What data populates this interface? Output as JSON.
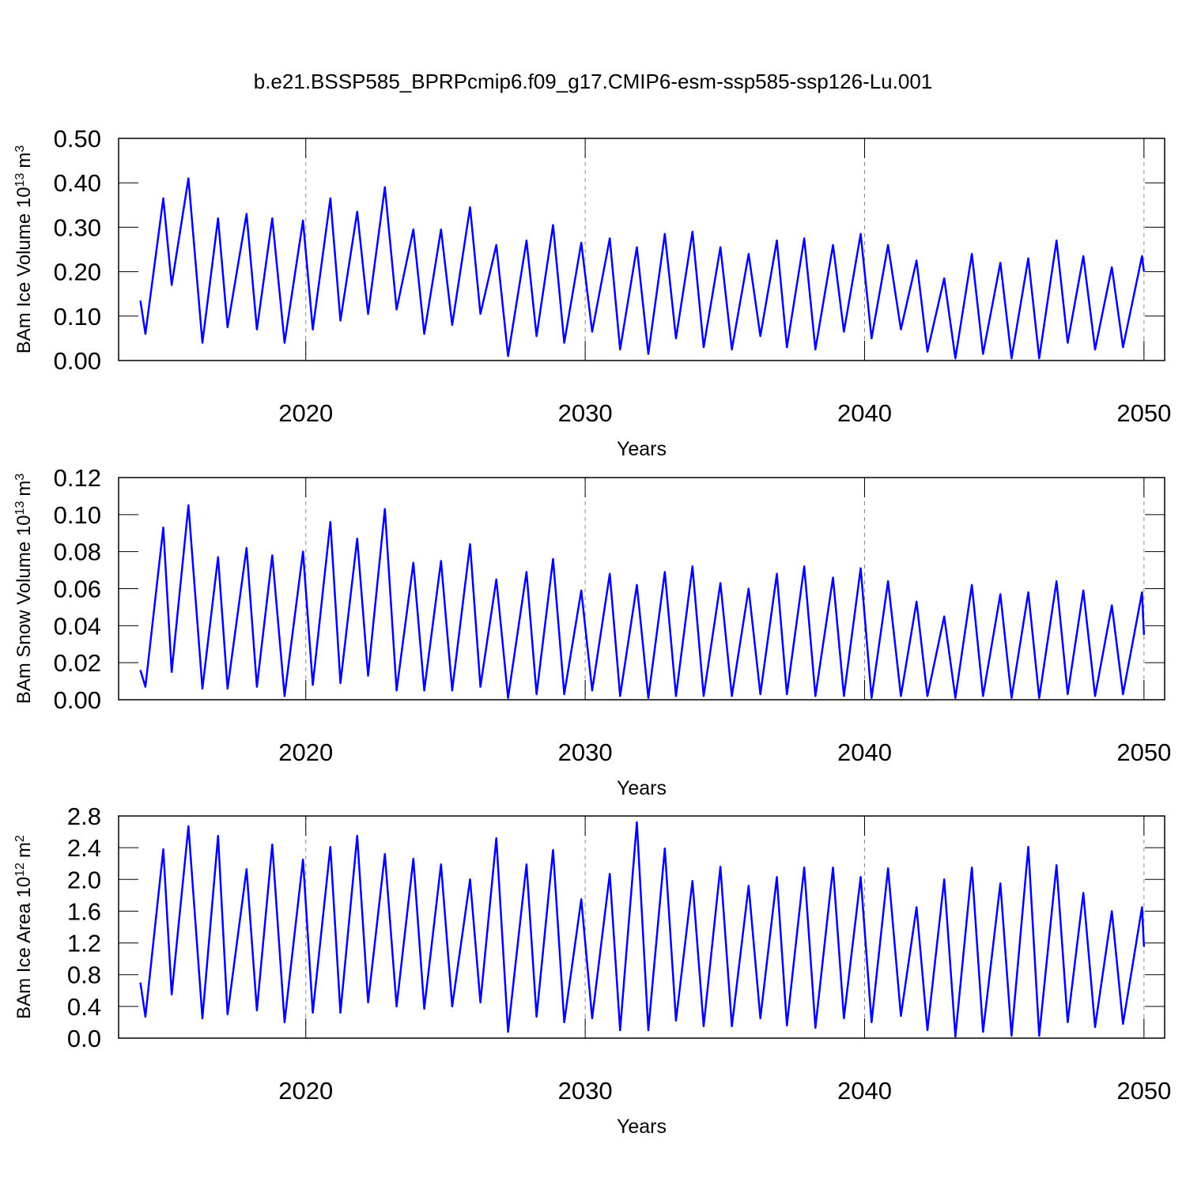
{
  "title": "b.e21.BSSP585_BPRPcmip6.f09_g17.CMIP6-esm-ssp585-ssp126-Lu.001",
  "chart_data": [
    {
      "type": "line",
      "ylabel": [
        "BAm Ice Volume 10",
        "13",
        "m",
        "3"
      ],
      "xlabel": "Years",
      "color": "#0000ff",
      "xlim": [
        2013.3,
        2050.74
      ],
      "ylim": [
        0,
        0.5
      ],
      "xticks": [
        2020,
        2030,
        2040,
        2050
      ],
      "yticks": [
        {
          "value": 0,
          "label": "0.00"
        },
        {
          "value": 0.1,
          "label": "0.10"
        },
        {
          "value": 0.2,
          "label": "0.20"
        },
        {
          "value": 0.3,
          "label": "0.30"
        },
        {
          "value": 0.4,
          "label": "0.40"
        },
        {
          "value": 0.5,
          "label": "0.50"
        }
      ],
      "grid": true,
      "x": [
        2014.08,
        2014.26,
        2014.9,
        2015.2,
        2015.8,
        2016.3,
        2016.86,
        2017.2,
        2017.88,
        2018.25,
        2018.8,
        2019.24,
        2019.9,
        2020.25,
        2020.88,
        2021.24,
        2021.84,
        2022.23,
        2022.83,
        2023.25,
        2023.85,
        2024.24,
        2024.84,
        2025.24,
        2025.88,
        2026.25,
        2026.82,
        2027.24,
        2027.9,
        2028.26,
        2028.85,
        2029.25,
        2029.86,
        2030.25,
        2030.88,
        2031.25,
        2031.85,
        2032.26,
        2032.85,
        2033.25,
        2033.84,
        2034.24,
        2034.84,
        2035.25,
        2035.85,
        2036.27,
        2036.86,
        2037.22,
        2037.84,
        2038.24,
        2038.87,
        2039.26,
        2039.86,
        2040.25,
        2040.84,
        2041.3,
        2041.86,
        2042.25,
        2042.85,
        2043.25,
        2043.84,
        2044.24,
        2044.86,
        2045.26,
        2045.86,
        2046.25,
        2046.87,
        2047.27,
        2047.83,
        2048.25,
        2048.85,
        2049.25,
        2049.93,
        2050
      ],
      "values": [
        0.135,
        0.06,
        0.365,
        0.17,
        0.41,
        0.04,
        0.32,
        0.075,
        0.33,
        0.07,
        0.32,
        0.04,
        0.315,
        0.07,
        0.365,
        0.09,
        0.335,
        0.105,
        0.39,
        0.115,
        0.295,
        0.06,
        0.295,
        0.08,
        0.345,
        0.105,
        0.26,
        0.01,
        0.27,
        0.055,
        0.305,
        0.04,
        0.265,
        0.065,
        0.275,
        0.025,
        0.255,
        0.015,
        0.285,
        0.05,
        0.29,
        0.03,
        0.255,
        0.025,
        0.24,
        0.055,
        0.27,
        0.03,
        0.275,
        0.025,
        0.26,
        0.065,
        0.285,
        0.05,
        0.26,
        0.07,
        0.225,
        0.02,
        0.185,
        0.005,
        0.24,
        0.015,
        0.22,
        0.005,
        0.23,
        0.005,
        0.27,
        0.04,
        0.235,
        0.025,
        0.21,
        0.03,
        0.235,
        0.2
      ]
    },
    {
      "type": "line",
      "ylabel": [
        "BAm Snow Volume 10",
        "13",
        "m",
        "3"
      ],
      "xlabel": "Years",
      "color": "#0000ff",
      "xlim": [
        2013.3,
        2050.74
      ],
      "ylim": [
        0,
        0.12
      ],
      "xticks": [
        2020,
        2030,
        2040,
        2050
      ],
      "yticks": [
        {
          "value": 0,
          "label": "0.00"
        },
        {
          "value": 0.02,
          "label": "0.02"
        },
        {
          "value": 0.04,
          "label": "0.04"
        },
        {
          "value": 0.06,
          "label": "0.06"
        },
        {
          "value": 0.08,
          "label": "0.08"
        },
        {
          "value": 0.1,
          "label": "0.10"
        },
        {
          "value": 0.12,
          "label": "0.12"
        }
      ],
      "grid": true,
      "x": [
        2014.08,
        2014.26,
        2014.9,
        2015.2,
        2015.8,
        2016.3,
        2016.86,
        2017.2,
        2017.88,
        2018.25,
        2018.8,
        2019.24,
        2019.9,
        2020.25,
        2020.88,
        2021.24,
        2021.84,
        2022.23,
        2022.83,
        2023.25,
        2023.85,
        2024.24,
        2024.84,
        2025.24,
        2025.88,
        2026.25,
        2026.82,
        2027.24,
        2027.9,
        2028.26,
        2028.85,
        2029.25,
        2029.86,
        2030.25,
        2030.88,
        2031.25,
        2031.85,
        2032.26,
        2032.85,
        2033.25,
        2033.84,
        2034.24,
        2034.84,
        2035.25,
        2035.85,
        2036.27,
        2036.86,
        2037.22,
        2037.84,
        2038.24,
        2038.87,
        2039.26,
        2039.86,
        2040.25,
        2040.84,
        2041.3,
        2041.86,
        2042.25,
        2042.85,
        2043.25,
        2043.84,
        2044.24,
        2044.86,
        2045.26,
        2045.86,
        2046.25,
        2046.87,
        2047.27,
        2047.83,
        2048.25,
        2048.85,
        2049.25,
        2049.93,
        2050
      ],
      "values": [
        0.016,
        0.007,
        0.093,
        0.015,
        0.105,
        0.006,
        0.077,
        0.006,
        0.082,
        0.007,
        0.078,
        0.002,
        0.08,
        0.008,
        0.096,
        0.009,
        0.087,
        0.013,
        0.103,
        0.005,
        0.074,
        0.005,
        0.075,
        0.005,
        0.084,
        0.007,
        0.065,
        0.001,
        0.069,
        0.003,
        0.076,
        0.003,
        0.059,
        0.005,
        0.068,
        0.002,
        0.062,
        0.001,
        0.069,
        0.002,
        0.072,
        0.002,
        0.063,
        0.002,
        0.06,
        0.003,
        0.068,
        0.003,
        0.072,
        0.002,
        0.066,
        0.002,
        0.071,
        0.001,
        0.064,
        0.002,
        0.053,
        0.002,
        0.045,
        0.001,
        0.062,
        0.002,
        0.057,
        0.001,
        0.058,
        0.001,
        0.064,
        0.003,
        0.059,
        0.002,
        0.051,
        0.003,
        0.058,
        0.035
      ]
    },
    {
      "type": "line",
      "ylabel": [
        "BAm Ice Area 10",
        "12",
        "m",
        "2"
      ],
      "xlabel": "Years",
      "color": "#0000ff",
      "xlim": [
        2013.3,
        2050.74
      ],
      "ylim": [
        0,
        2.8
      ],
      "xticks": [
        2020,
        2030,
        2040,
        2050
      ],
      "yticks": [
        {
          "value": 0,
          "label": "0.0"
        },
        {
          "value": 0.4,
          "label": "0.4"
        },
        {
          "value": 0.8,
          "label": "0.8"
        },
        {
          "value": 1.2,
          "label": "1.2"
        },
        {
          "value": 1.6,
          "label": "1.6"
        },
        {
          "value": 2,
          "label": "2.0"
        },
        {
          "value": 2.4,
          "label": "2.4"
        },
        {
          "value": 2.8,
          "label": "2.8"
        }
      ],
      "grid": true,
      "x": [
        2014.08,
        2014.26,
        2014.9,
        2015.2,
        2015.8,
        2016.3,
        2016.86,
        2017.2,
        2017.88,
        2018.25,
        2018.8,
        2019.24,
        2019.9,
        2020.25,
        2020.88,
        2021.24,
        2021.84,
        2022.23,
        2022.83,
        2023.25,
        2023.85,
        2024.24,
        2024.84,
        2025.24,
        2025.88,
        2026.25,
        2026.82,
        2027.24,
        2027.9,
        2028.26,
        2028.85,
        2029.25,
        2029.86,
        2030.25,
        2030.88,
        2031.25,
        2031.85,
        2032.26,
        2032.85,
        2033.25,
        2033.84,
        2034.24,
        2034.84,
        2035.25,
        2035.85,
        2036.27,
        2036.86,
        2037.22,
        2037.84,
        2038.24,
        2038.87,
        2039.26,
        2039.86,
        2040.25,
        2040.84,
        2041.3,
        2041.86,
        2042.25,
        2042.85,
        2043.25,
        2043.84,
        2044.24,
        2044.86,
        2045.26,
        2045.86,
        2046.25,
        2046.87,
        2047.27,
        2047.83,
        2048.25,
        2048.85,
        2049.25,
        2049.93,
        2050
      ],
      "values": [
        0.7,
        0.27,
        2.38,
        0.55,
        2.67,
        0.25,
        2.55,
        0.3,
        2.13,
        0.35,
        2.44,
        0.2,
        2.25,
        0.32,
        2.41,
        0.32,
        2.55,
        0.45,
        2.32,
        0.4,
        2.26,
        0.37,
        2.19,
        0.4,
        2.0,
        0.45,
        2.52,
        0.08,
        2.19,
        0.27,
        2.37,
        0.2,
        1.75,
        0.25,
        2.07,
        0.1,
        2.72,
        0.1,
        2.39,
        0.22,
        1.98,
        0.15,
        2.16,
        0.15,
        1.92,
        0.25,
        2.03,
        0.16,
        2.15,
        0.13,
        2.15,
        0.25,
        2.03,
        0.2,
        2.14,
        0.28,
        1.65,
        0.1,
        2.0,
        0.02,
        2.15,
        0.08,
        1.95,
        0.03,
        2.41,
        0.03,
        2.18,
        0.2,
        1.83,
        0.14,
        1.6,
        0.18,
        1.65,
        1.15
      ]
    }
  ]
}
